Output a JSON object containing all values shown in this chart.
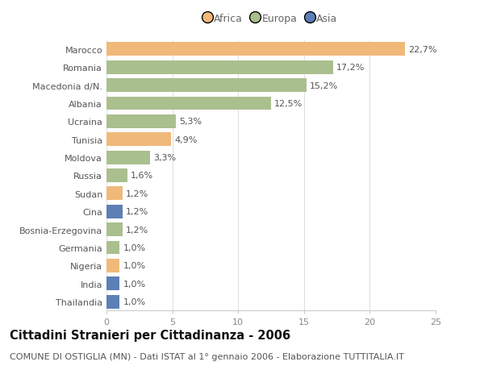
{
  "categories": [
    "Marocco",
    "Romania",
    "Macedonia d/N.",
    "Albania",
    "Ucraina",
    "Tunisia",
    "Moldova",
    "Russia",
    "Sudan",
    "Cina",
    "Bosnia-Erzegovina",
    "Germania",
    "Nigeria",
    "India",
    "Thailandia"
  ],
  "values": [
    22.7,
    17.2,
    15.2,
    12.5,
    5.3,
    4.9,
    3.3,
    1.6,
    1.2,
    1.2,
    1.2,
    1.0,
    1.0,
    1.0,
    1.0
  ],
  "labels": [
    "22,7%",
    "17,2%",
    "15,2%",
    "12,5%",
    "5,3%",
    "4,9%",
    "3,3%",
    "1,6%",
    "1,2%",
    "1,2%",
    "1,2%",
    "1,0%",
    "1,0%",
    "1,0%",
    "1,0%"
  ],
  "continents": [
    "Africa",
    "Europa",
    "Europa",
    "Europa",
    "Europa",
    "Africa",
    "Europa",
    "Europa",
    "Africa",
    "Asia",
    "Europa",
    "Europa",
    "Africa",
    "Asia",
    "Asia"
  ],
  "colors": {
    "Africa": "#F0B97A",
    "Europa": "#AABF8E",
    "Asia": "#5C7FB5"
  },
  "legend_labels": [
    "Africa",
    "Europa",
    "Asia"
  ],
  "legend_colors": [
    "#F0B97A",
    "#AABF8E",
    "#5C7FB5"
  ],
  "title": "Cittadini Stranieri per Cittadinanza - 2006",
  "subtitle": "COMUNE DI OSTIGLIA (MN) - Dati ISTAT al 1° gennaio 2006 - Elaborazione TUTTITALIA.IT",
  "xlim": [
    0,
    25
  ],
  "xticks": [
    0,
    5,
    10,
    15,
    20,
    25
  ],
  "background_color": "#ffffff",
  "grid_color": "#e0e0e0",
  "bar_height": 0.75,
  "title_fontsize": 10.5,
  "subtitle_fontsize": 8.0,
  "tick_fontsize": 8.0,
  "label_fontsize": 8.0,
  "label_color": "#555555",
  "ytick_color": "#555555",
  "xtick_color": "#888888"
}
